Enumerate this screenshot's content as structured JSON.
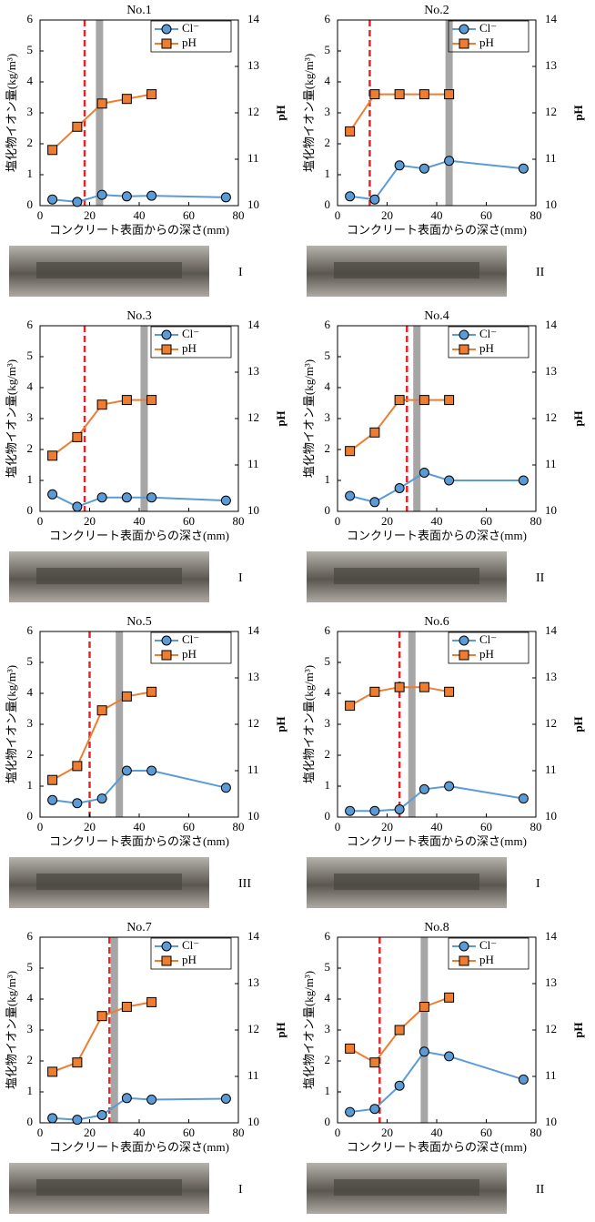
{
  "chart_data": [
    {
      "type": "line",
      "title": "No.1",
      "xlabel": "コンクリート表面からの深さ(mm)",
      "ylabel": "塩化物イオン量(kg/m³)",
      "y2label": "pH",
      "annotation": "I",
      "x": [
        5,
        15,
        25,
        35,
        45,
        75
      ],
      "xlim": [
        0,
        80
      ],
      "xticks": [
        0,
        20,
        40,
        60,
        80
      ],
      "ylim": [
        0,
        6
      ],
      "yticks": [
        0,
        1,
        2,
        3,
        4,
        5,
        6
      ],
      "y2lim": [
        10,
        14
      ],
      "y2ticks": [
        10,
        11,
        12,
        13,
        14
      ],
      "series": [
        {
          "name": "Cl⁻",
          "color": "#5b9bd5",
          "marker": "circle",
          "values": [
            0.2,
            0.12,
            0.35,
            0.3,
            0.32,
            0.27
          ]
        },
        {
          "name": "pH",
          "color": "#ed7d31",
          "marker": "square",
          "axis": "y2",
          "values": [
            11.2,
            11.7,
            12.2,
            12.3,
            12.4,
            null
          ]
        }
      ],
      "reference_lines": [
        {
          "x": 18,
          "color": "#e8232a",
          "style": "dashed"
        },
        {
          "x": 24,
          "color": "#a6a6a6",
          "style": "band"
        }
      ]
    },
    {
      "type": "line",
      "title": "No.2",
      "xlabel": "コンクリート表面からの深さ(mm)",
      "ylabel": "塩化物イオン量(kg/m³)",
      "y2label": "pH",
      "annotation": "II",
      "x": [
        5,
        15,
        25,
        35,
        45,
        75
      ],
      "xlim": [
        0,
        80
      ],
      "xticks": [
        0,
        20,
        40,
        60,
        80
      ],
      "ylim": [
        0,
        6
      ],
      "yticks": [
        0,
        1,
        2,
        3,
        4,
        5,
        6
      ],
      "y2lim": [
        10,
        14
      ],
      "y2ticks": [
        10,
        11,
        12,
        13,
        14
      ],
      "series": [
        {
          "name": "Cl⁻",
          "color": "#5b9bd5",
          "marker": "circle",
          "values": [
            0.3,
            0.2,
            1.3,
            1.2,
            1.45,
            1.2
          ]
        },
        {
          "name": "pH",
          "color": "#ed7d31",
          "marker": "square",
          "axis": "y2",
          "values": [
            11.6,
            12.4,
            12.4,
            12.4,
            12.4,
            null
          ]
        }
      ],
      "reference_lines": [
        {
          "x": 13,
          "color": "#e8232a",
          "style": "dashed"
        },
        {
          "x": 45,
          "color": "#a6a6a6",
          "style": "band"
        }
      ]
    },
    {
      "type": "line",
      "title": "No.3",
      "xlabel": "コンクリート表面からの深さ(mm)",
      "ylabel": "塩化物イオン量(kg/m³)",
      "y2label": "pH",
      "annotation": "I",
      "x": [
        5,
        15,
        25,
        35,
        45,
        75
      ],
      "xlim": [
        0,
        80
      ],
      "xticks": [
        0,
        20,
        40,
        60,
        80
      ],
      "ylim": [
        0,
        6
      ],
      "yticks": [
        0,
        1,
        2,
        3,
        4,
        5,
        6
      ],
      "y2lim": [
        10,
        14
      ],
      "y2ticks": [
        10,
        11,
        12,
        13,
        14
      ],
      "series": [
        {
          "name": "Cl⁻",
          "color": "#5b9bd5",
          "marker": "circle",
          "values": [
            0.55,
            0.15,
            0.45,
            0.45,
            0.45,
            0.35
          ]
        },
        {
          "name": "pH",
          "color": "#ed7d31",
          "marker": "square",
          "axis": "y2",
          "values": [
            11.2,
            11.6,
            12.3,
            12.4,
            12.4,
            null
          ]
        }
      ],
      "reference_lines": [
        {
          "x": 18,
          "color": "#e8232a",
          "style": "dashed"
        },
        {
          "x": 42,
          "color": "#a6a6a6",
          "style": "band"
        }
      ]
    },
    {
      "type": "line",
      "title": "No.4",
      "xlabel": "コンクリート表面からの深さ(mm)",
      "ylabel": "塩化物イオン量(kg/m³)",
      "y2label": "pH",
      "annotation": "II",
      "x": [
        5,
        15,
        25,
        35,
        45,
        75
      ],
      "xlim": [
        0,
        80
      ],
      "xticks": [
        0,
        20,
        40,
        60,
        80
      ],
      "ylim": [
        0,
        6
      ],
      "yticks": [
        0,
        1,
        2,
        3,
        4,
        5,
        6
      ],
      "y2lim": [
        10,
        14
      ],
      "y2ticks": [
        10,
        11,
        12,
        13,
        14
      ],
      "series": [
        {
          "name": "Cl⁻",
          "color": "#5b9bd5",
          "marker": "circle",
          "values": [
            0.5,
            0.3,
            0.75,
            1.25,
            1.0,
            1.0
          ]
        },
        {
          "name": "pH",
          "color": "#ed7d31",
          "marker": "square",
          "axis": "y2",
          "values": [
            11.3,
            11.7,
            12.4,
            12.4,
            12.4,
            null
          ]
        }
      ],
      "reference_lines": [
        {
          "x": 28,
          "color": "#e8232a",
          "style": "dashed"
        },
        {
          "x": 32,
          "color": "#a6a6a6",
          "style": "band"
        }
      ]
    },
    {
      "type": "line",
      "title": "No.5",
      "xlabel": "コンクリート表面からの深さ(mm)",
      "ylabel": "塩化物イオン量(kg/m³)",
      "y2label": "pH",
      "annotation": "III",
      "x": [
        5,
        15,
        25,
        35,
        45,
        75
      ],
      "xlim": [
        0,
        80
      ],
      "xticks": [
        0,
        20,
        40,
        60,
        80
      ],
      "ylim": [
        0,
        6
      ],
      "yticks": [
        0,
        1,
        2,
        3,
        4,
        5,
        6
      ],
      "y2lim": [
        10,
        14
      ],
      "y2ticks": [
        10,
        11,
        12,
        13,
        14
      ],
      "series": [
        {
          "name": "Cl⁻",
          "color": "#5b9bd5",
          "marker": "circle",
          "values": [
            0.55,
            0.45,
            0.6,
            1.5,
            1.5,
            0.95
          ]
        },
        {
          "name": "pH",
          "color": "#ed7d31",
          "marker": "square",
          "axis": "y2",
          "values": [
            10.8,
            11.1,
            12.3,
            12.6,
            12.7,
            null
          ]
        }
      ],
      "reference_lines": [
        {
          "x": 20,
          "color": "#e8232a",
          "style": "dashed"
        },
        {
          "x": 32,
          "color": "#a6a6a6",
          "style": "band"
        }
      ]
    },
    {
      "type": "line",
      "title": "No.6",
      "xlabel": "コンクリート表面からの深さ(mm)",
      "ylabel": "塩化物イオン量(kg/m³)",
      "y2label": "pH",
      "annotation": "I",
      "x": [
        5,
        15,
        25,
        35,
        45,
        75
      ],
      "xlim": [
        0,
        80
      ],
      "xticks": [
        0,
        20,
        40,
        60,
        80
      ],
      "ylim": [
        0,
        6
      ],
      "yticks": [
        0,
        1,
        2,
        3,
        4,
        5,
        6
      ],
      "y2lim": [
        10,
        14
      ],
      "y2ticks": [
        10,
        11,
        12,
        13,
        14
      ],
      "series": [
        {
          "name": "Cl⁻",
          "color": "#5b9bd5",
          "marker": "circle",
          "values": [
            0.2,
            0.2,
            0.25,
            0.9,
            1.0,
            0.6
          ]
        },
        {
          "name": "pH",
          "color": "#ed7d31",
          "marker": "square",
          "axis": "y2",
          "values": [
            12.4,
            12.7,
            12.8,
            12.8,
            12.7,
            null
          ]
        }
      ],
      "reference_lines": [
        {
          "x": 25,
          "color": "#e8232a",
          "style": "dashed"
        },
        {
          "x": 30,
          "color": "#a6a6a6",
          "style": "band"
        }
      ]
    },
    {
      "type": "line",
      "title": "No.7",
      "xlabel": "コンクリート表面からの深さ(mm)",
      "ylabel": "塩化物イオン量(kg/m³)",
      "y2label": "pH",
      "annotation": "I",
      "x": [
        5,
        15,
        25,
        35,
        45,
        75
      ],
      "xlim": [
        0,
        80
      ],
      "xticks": [
        0,
        20,
        40,
        60,
        80
      ],
      "ylim": [
        0,
        6
      ],
      "yticks": [
        0,
        1,
        2,
        3,
        4,
        5,
        6
      ],
      "y2lim": [
        10,
        14
      ],
      "y2ticks": [
        10,
        11,
        12,
        13,
        14
      ],
      "series": [
        {
          "name": "Cl⁻",
          "color": "#5b9bd5",
          "marker": "circle",
          "values": [
            0.15,
            0.1,
            0.25,
            0.8,
            0.75,
            0.78
          ]
        },
        {
          "name": "pH",
          "color": "#ed7d31",
          "marker": "square",
          "axis": "y2",
          "values": [
            11.1,
            11.3,
            12.3,
            12.5,
            12.6,
            null
          ]
        }
      ],
      "reference_lines": [
        {
          "x": 28,
          "color": "#e8232a",
          "style": "dashed"
        },
        {
          "x": 30,
          "color": "#a6a6a6",
          "style": "band"
        }
      ]
    },
    {
      "type": "line",
      "title": "No.8",
      "xlabel": "コンクリート表面からの深さ(mm)",
      "ylabel": "塩化物イオン量(kg/m³)",
      "y2label": "pH",
      "annotation": "II",
      "x": [
        5,
        15,
        25,
        35,
        45,
        75
      ],
      "xlim": [
        0,
        80
      ],
      "xticks": [
        0,
        20,
        40,
        60,
        80
      ],
      "ylim": [
        0,
        6
      ],
      "yticks": [
        0,
        1,
        2,
        3,
        4,
        5,
        6
      ],
      "y2lim": [
        10,
        14
      ],
      "y2ticks": [
        10,
        11,
        12,
        13,
        14
      ],
      "series": [
        {
          "name": "Cl⁻",
          "color": "#5b9bd5",
          "marker": "circle",
          "values": [
            0.35,
            0.45,
            1.2,
            2.3,
            2.15,
            1.4
          ]
        },
        {
          "name": "pH",
          "color": "#ed7d31",
          "marker": "square",
          "axis": "y2",
          "values": [
            11.6,
            11.3,
            12.0,
            12.5,
            12.7,
            null
          ]
        }
      ],
      "reference_lines": [
        {
          "x": 17,
          "color": "#e8232a",
          "style": "dashed"
        },
        {
          "x": 35,
          "color": "#a6a6a6",
          "style": "band"
        }
      ]
    }
  ]
}
